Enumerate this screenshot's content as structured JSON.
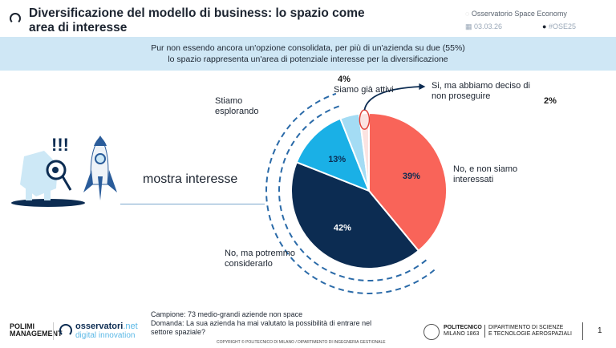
{
  "header": {
    "title": "Diversificazione del modello di business: lo spazio come area di interesse",
    "observatory": "Osservatorio Space Economy",
    "date": "03.03.26",
    "hashtag": "#OSE25"
  },
  "banner": {
    "line1": "Pur non essendo ancora un'opzione consolidata, per più di un'azienda su due (55%)",
    "line2": "lo spazio rappresenta un'area di potenziale interesse per la diversificazione"
  },
  "side_label": "mostra interesse",
  "chart_data": {
    "type": "pie",
    "start": "top",
    "direction": "clockwise",
    "slices": [
      {
        "label": "No, e non siamo interessati",
        "value": 39,
        "display": "39%",
        "color": "#f96459"
      },
      {
        "label": "No, ma potremmo considerarlo",
        "value": 42,
        "display": "42%",
        "color": "#0c2c52"
      },
      {
        "label": "Stiamo esplorando",
        "value": 13,
        "display": "13%",
        "color": "#1ab0e6"
      },
      {
        "label": "Siamo già attivi",
        "value": 4,
        "display": "4%",
        "color": "#a4dcf4"
      },
      {
        "label": "Si, ma abbiamo deciso di non proseguire",
        "value": 2,
        "display": "2%",
        "color": "#fbe3e1"
      }
    ]
  },
  "footer": {
    "sample": "Campione: 73 medio-grandi aziende non space",
    "question": "Domanda: La sua azienda ha mai valutato la possibilità di entrare nel settore spaziale?",
    "copyright": "COPYRIGHT © POLITECNICO DI MILANO / DIPARTIMENTO DI INGEGNERIA GESTIONALE",
    "logo_polimi": "POLIMI MANAGEMENT",
    "logo_oss1": "osservatori",
    "logo_oss2": ".net",
    "logo_oss3": "digital innovation",
    "logo_poli1": "POLITECNICO",
    "logo_poli2": "MILANO 1863",
    "dept1": "DIPARTIMENTO DI SCIENZE",
    "dept2": "E TECNOLOGIE AEROSPAZIALI",
    "page": "1"
  }
}
